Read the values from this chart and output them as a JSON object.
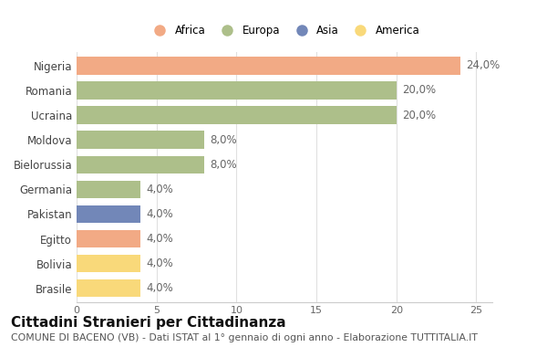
{
  "countries": [
    "Nigeria",
    "Romania",
    "Ucraina",
    "Moldova",
    "Bielorussia",
    "Germania",
    "Pakistan",
    "Egitto",
    "Bolivia",
    "Brasile"
  ],
  "values": [
    24.0,
    20.0,
    20.0,
    8.0,
    8.0,
    4.0,
    4.0,
    4.0,
    4.0,
    4.0
  ],
  "colors": [
    "#F2AA85",
    "#ADBF8A",
    "#ADBF8A",
    "#ADBF8A",
    "#ADBF8A",
    "#ADBF8A",
    "#7287B8",
    "#F2AA85",
    "#F9D97A",
    "#F9D97A"
  ],
  "legend": [
    {
      "label": "Africa",
      "color": "#F2AA85"
    },
    {
      "label": "Europa",
      "color": "#ADBF8A"
    },
    {
      "label": "Asia",
      "color": "#7287B8"
    },
    {
      "label": "America",
      "color": "#F9D97A"
    }
  ],
  "title": "Cittadini Stranieri per Cittadinanza",
  "subtitle": "COMUNE DI BACENO (VB) - Dati ISTAT al 1° gennaio di ogni anno - Elaborazione TUTTITALIA.IT",
  "xlim": [
    0,
    26
  ],
  "xticks": [
    0,
    5,
    10,
    15,
    20,
    25
  ],
  "background_color": "#ffffff",
  "bar_height": 0.72,
  "label_fontsize": 8.5,
  "title_fontsize": 11,
  "subtitle_fontsize": 7.8,
  "tick_fontsize": 8,
  "ylabel_fontsize": 8.5,
  "legend_fontsize": 8.5
}
